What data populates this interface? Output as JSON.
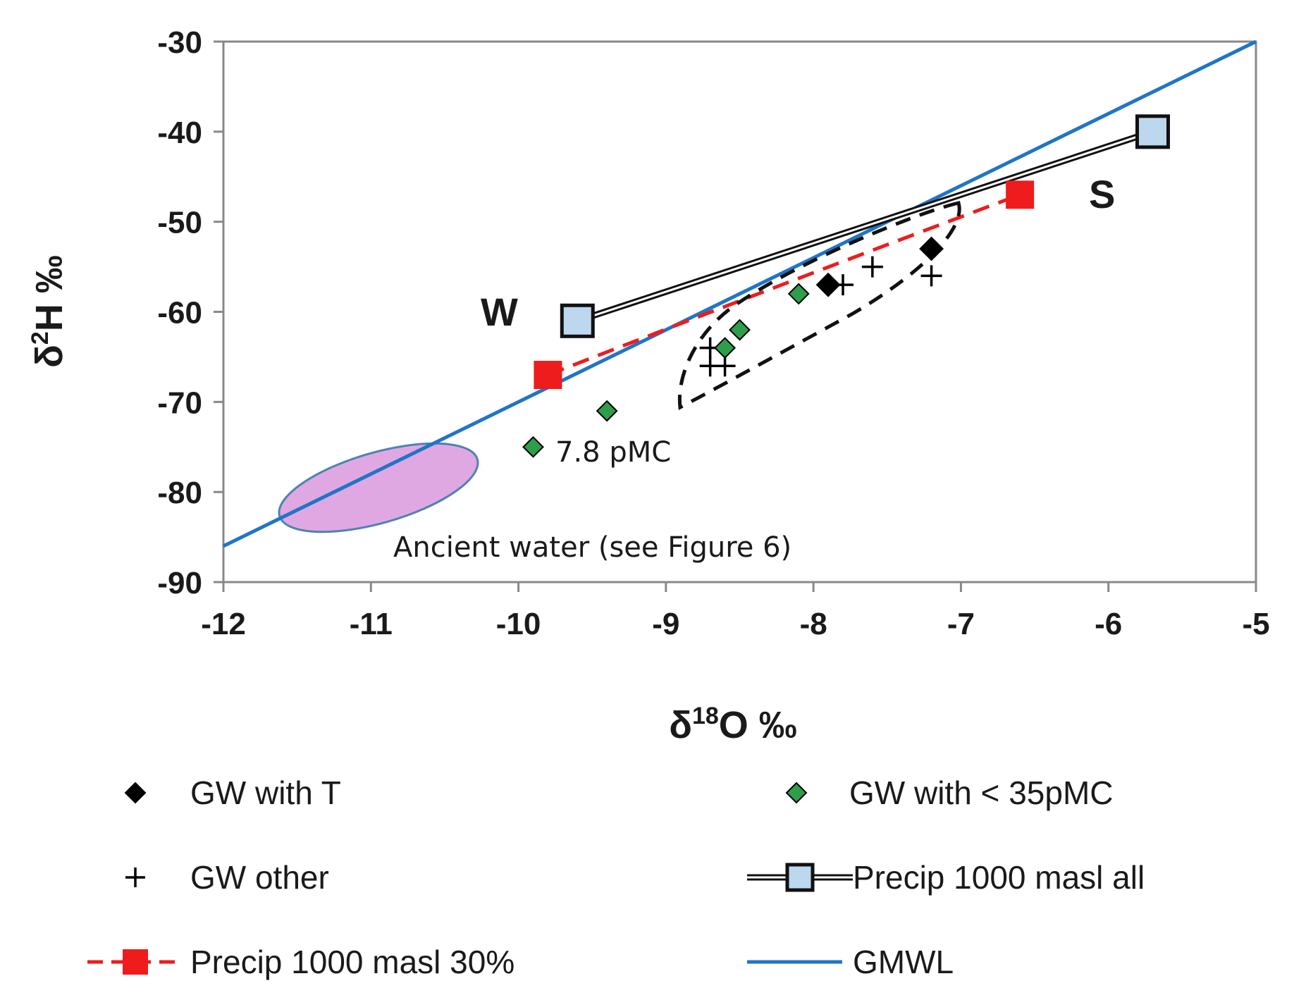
{
  "chart_data": {
    "type": "scatter",
    "xlabel": {
      "prefix": "δ",
      "sup": "18",
      "suffix": "O ‰"
    },
    "ylabel": {
      "prefix": "δ",
      "sup": "2",
      "suffix": "H ‰"
    },
    "xlim": [
      -12,
      -5
    ],
    "ylim": [
      -90,
      -30
    ],
    "xticks": [
      -12,
      -11,
      -10,
      -9,
      -8,
      -7,
      -6,
      -5
    ],
    "yticks": [
      -30,
      -40,
      -50,
      -60,
      -70,
      -80,
      -90
    ],
    "grid": false,
    "series": [
      {
        "name": "GW with T",
        "marker": "diamond",
        "color": "#000000",
        "points": [
          [
            -7.9,
            -57
          ],
          [
            -7.2,
            -53
          ]
        ]
      },
      {
        "name": "GW with < 35pMC",
        "marker": "diamond",
        "color": "#2e9e4a",
        "points": [
          [
            -8.5,
            -62
          ],
          [
            -8.6,
            -64
          ],
          [
            -8.1,
            -58
          ],
          [
            -9.4,
            -71
          ],
          [
            -9.9,
            -75
          ]
        ]
      },
      {
        "name": "GW other",
        "marker": "plus",
        "color": "#000000",
        "points": [
          [
            -7.6,
            -55
          ],
          [
            -7.8,
            -57
          ],
          [
            -7.2,
            -56
          ],
          [
            -8.7,
            -64
          ],
          [
            -8.7,
            -66
          ],
          [
            -8.6,
            -66
          ]
        ]
      },
      {
        "name": "Precip 1000 masl all",
        "marker": "square",
        "color": "#bcd7ee",
        "points": [
          [
            -9.6,
            -61
          ],
          [
            -5.7,
            -40
          ]
        ]
      },
      {
        "name": "Precip 1000 masl 30%",
        "marker": "square",
        "color": "#ee1c1c",
        "points": [
          [
            -9.8,
            -67
          ],
          [
            -6.6,
            -47
          ]
        ]
      },
      {
        "name": "GMWL",
        "type": "line",
        "color": "#1f75c8",
        "points": [
          [
            -12,
            -86
          ],
          [
            -5,
            -30
          ]
        ]
      }
    ],
    "annotations": {
      "pmc_label": "7.8 pMC",
      "ancient_water": "Ancient water (see Figure 6)",
      "winter": "W",
      "summer": "S"
    },
    "legend": {
      "placement": "bottom",
      "items": [
        "GW with T",
        "GW with < 35pMC",
        "GW other",
        "Precip 1000 masl all",
        "Precip 1000 masl 30%",
        "GMWL"
      ]
    }
  }
}
